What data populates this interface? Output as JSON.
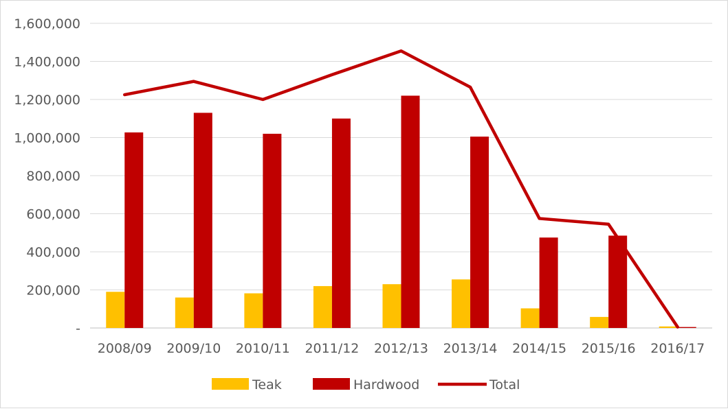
{
  "chart_data": {
    "type": "bar",
    "categories": [
      "2008/09",
      "2009/10",
      "2010/11",
      "2011/12",
      "2012/13",
      "2013/14",
      "2014/15",
      "2015/16",
      "2016/17"
    ],
    "series": [
      {
        "name": "Teak",
        "kind": "bar",
        "color": "#ffc000",
        "values": [
          190000,
          160000,
          182000,
          220000,
          230000,
          255000,
          103000,
          58000,
          8000
        ]
      },
      {
        "name": "Hardwood",
        "kind": "bar",
        "color": "#c00000",
        "values": [
          1027000,
          1130000,
          1020000,
          1100000,
          1220000,
          1005000,
          475000,
          485000,
          5000
        ]
      },
      {
        "name": "Total",
        "kind": "line",
        "color": "#c00000",
        "values": [
          1225000,
          1295000,
          1200000,
          1330000,
          1455000,
          1265000,
          575000,
          545000,
          5000
        ]
      }
    ],
    "ylim": [
      0,
      1600000
    ],
    "yticks": [
      0,
      200000,
      400000,
      600000,
      800000,
      1000000,
      1200000,
      1400000,
      1600000
    ],
    "ytick_labels": [
      "-",
      "200,000",
      "400,000",
      "600,000",
      "800,000",
      "1,000,000",
      "1,200,000",
      "1,400,000",
      "1,600,000"
    ],
    "grid": true,
    "legend": {
      "position": "bottom",
      "items": [
        {
          "label": "Teak",
          "marker": "box",
          "color": "#ffc000"
        },
        {
          "label": "Hardwood",
          "marker": "box",
          "color": "#c00000"
        },
        {
          "label": "Total",
          "marker": "line",
          "color": "#c00000"
        }
      ]
    }
  }
}
